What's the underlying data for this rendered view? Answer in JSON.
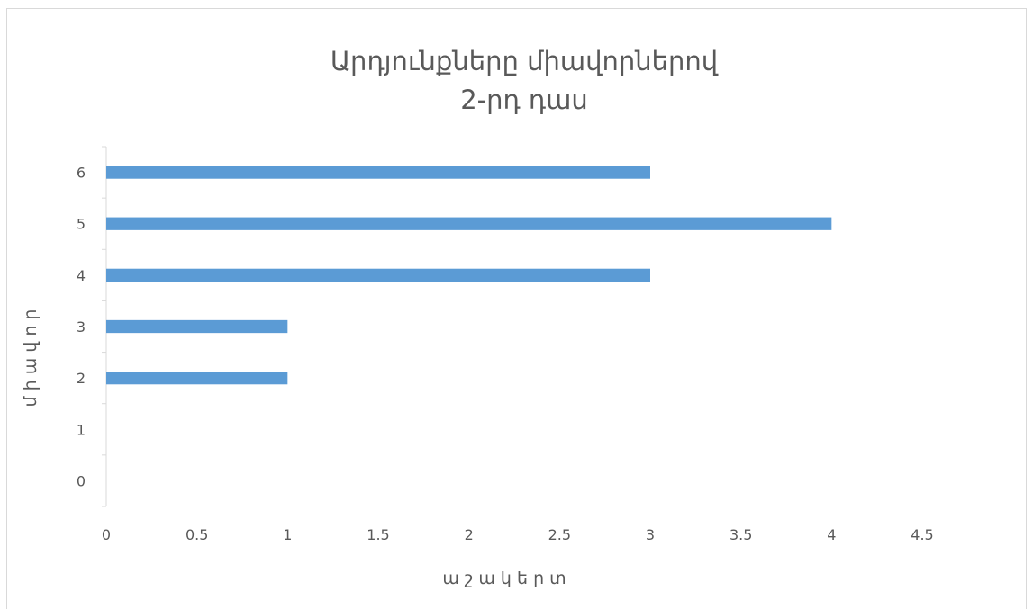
{
  "chart_data": {
    "type": "bar",
    "orientation": "horizontal",
    "title_lines": [
      "Արդյունքները միավորներով",
      "2-րդ դաս"
    ],
    "xlabel": "ա շ ա կ ե ր տ",
    "ylabel": "մ ի ա վ ո ր",
    "categories": [
      "0",
      "1",
      "2",
      "3",
      "4",
      "5",
      "6"
    ],
    "values": [
      0,
      0,
      1,
      1,
      3,
      4,
      3
    ],
    "xlim": [
      0,
      4.5
    ],
    "xticks": [
      "0",
      "0.5",
      "1",
      "1.5",
      "2",
      "2.5",
      "3",
      "3.5",
      "4",
      "4.5"
    ],
    "grid": false,
    "legend": "none",
    "bar_color": "#5b9bd5"
  }
}
